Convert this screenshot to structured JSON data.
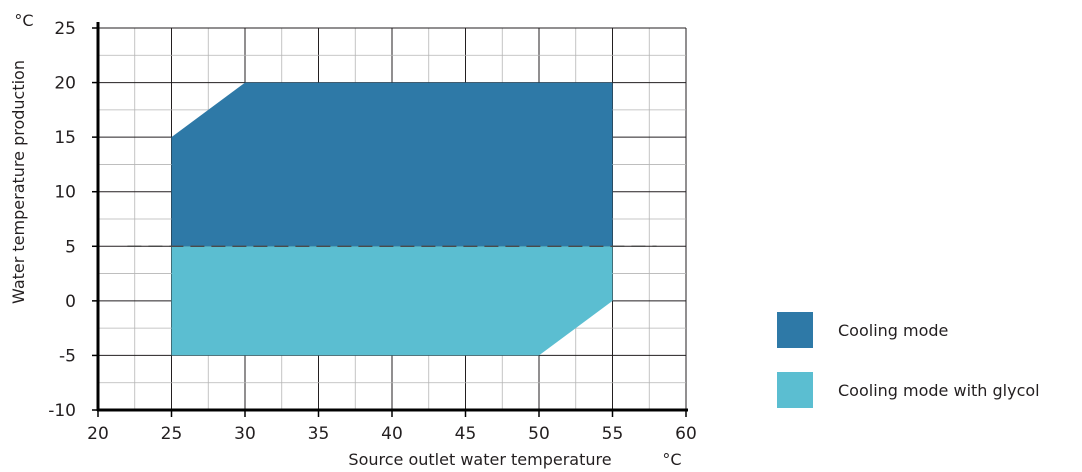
{
  "chart_data": {
    "type": "area",
    "xlabel": "Source outlet water temperature",
    "xunit": "°C",
    "ylabel": "Water temperature production",
    "yunit": "°C",
    "xlim": [
      20,
      60
    ],
    "ylim": [
      -10,
      25
    ],
    "xticks": [
      20,
      25,
      30,
      35,
      40,
      45,
      50,
      55,
      60
    ],
    "yticks": [
      -10,
      -5,
      0,
      5,
      10,
      15,
      20,
      25
    ],
    "xtick_labels": [
      "20",
      "25",
      "30",
      "35",
      "40",
      "45",
      "50",
      "55",
      "60"
    ],
    "ytick_labels": [
      "-10",
      "-5",
      "0",
      "5",
      "10",
      "15",
      "20",
      "25"
    ],
    "grid": true,
    "minor_grid_step": 2.5,
    "legend_position": "right",
    "series": [
      {
        "name": "Cooling mode",
        "color": "#2e79a7",
        "polygon": [
          [
            25,
            5
          ],
          [
            25,
            15
          ],
          [
            30,
            20
          ],
          [
            55,
            20
          ],
          [
            55,
            5
          ]
        ]
      },
      {
        "name": "Cooling mode with glycol",
        "color": "#5bbed1",
        "polygon": [
          [
            25,
            -5
          ],
          [
            25,
            5
          ],
          [
            55,
            5
          ],
          [
            55,
            0
          ],
          [
            50,
            -5
          ]
        ]
      }
    ],
    "reference_line": {
      "y": 5,
      "x_range": [
        22,
        58
      ],
      "style": "dashed"
    }
  }
}
